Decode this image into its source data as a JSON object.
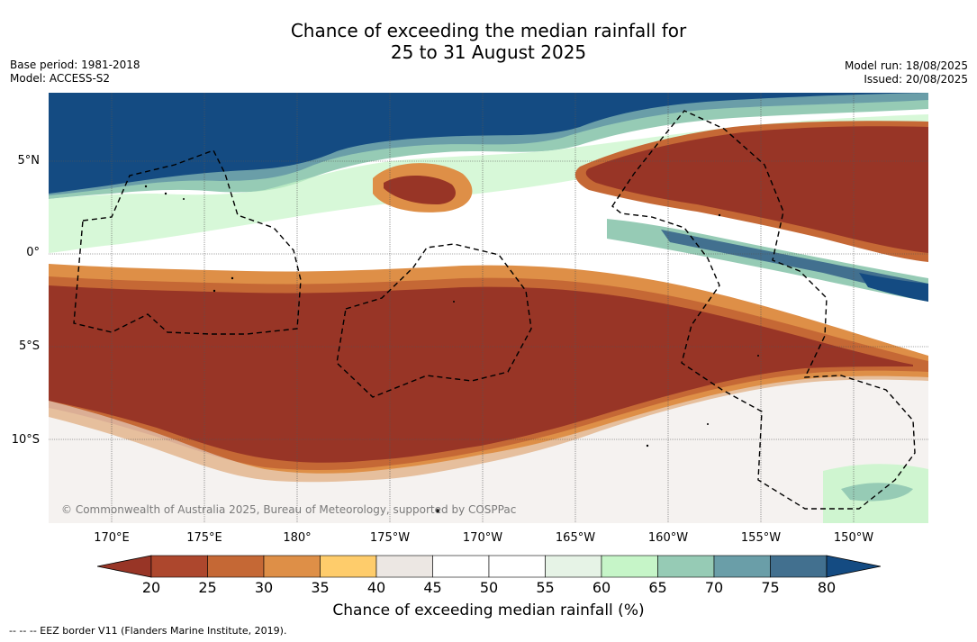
{
  "title": {
    "line1": "Chance of exceeding the median rainfall for",
    "line2": "25 to 31 August 2025"
  },
  "meta_left": {
    "base_period": "Base period: 1981-2018",
    "model": "Model: ACCESS-S2"
  },
  "meta_right": {
    "model_run": "Model run: 18/08/2025",
    "issued": "Issued: 20/08/2025"
  },
  "map": {
    "copyright": "© Commonwealth of Australia 2025, Bureau of Meteorology, supported by COSPPac",
    "lat_labels": [
      "5°N",
      "0°",
      "5°S",
      "10°S"
    ],
    "lon_labels": [
      "170°E",
      "175°E",
      "180°",
      "175°W",
      "170°W",
      "165°W",
      "160°W",
      "155°W",
      "150°W"
    ]
  },
  "colorbar": {
    "ticks": [
      "20",
      "25",
      "30",
      "35",
      "40",
      "45",
      "50",
      "55",
      "60",
      "65",
      "70",
      "75",
      "80"
    ],
    "colors": [
      "#983526",
      "#ad472d",
      "#c56835",
      "#de8f47",
      "#fecc6b",
      "#ece7e3",
      "#ffffff",
      "#ffffff",
      "#e6f3e6",
      "#c6f5c8",
      "#96cbb5",
      "#6a9ea8",
      "#42708f",
      "#144b82"
    ],
    "label": "Chance of exceeding median rainfall (%)"
  },
  "footnote": "--  --  -- EEZ border V11 (Flanders Marine Institute, 2019)."
}
